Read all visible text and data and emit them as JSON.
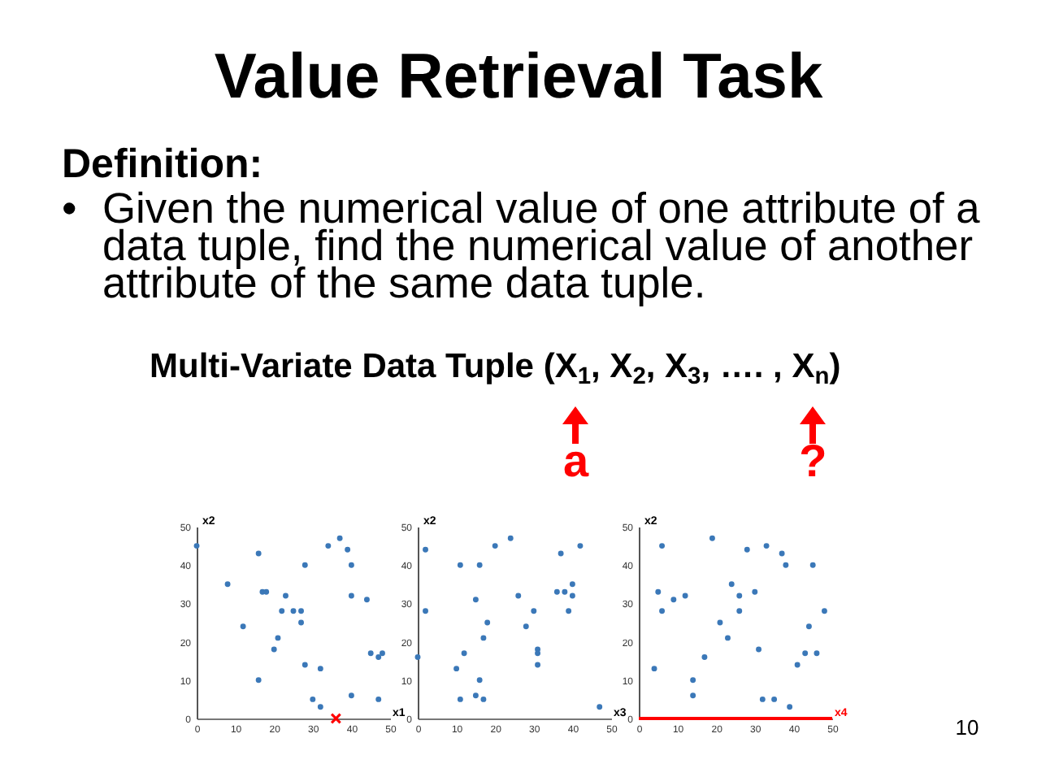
{
  "chart_data": [
    {
      "type": "other",
      "title": "Value Retrieval Task",
      "annotations": [
        "Definition:",
        "• Given the numerical value of one attribute of a data tuple, find the numerical value of another attribute of the same data tuple.",
        "Multi-Variate Data Tuple (X$_{1}$, X$_{2}$, X$_{3}$, …. , X$_{n}$)",
        "a",
        "?",
        "10"
      ]
    },
    {
      "type": "scatter",
      "xlabel": "x1",
      "ylabel": "x2",
      "xlim": [
        0,
        50
      ],
      "ylim": [
        0,
        50
      ],
      "xticks": [
        0,
        10,
        20,
        30,
        40,
        50
      ],
      "yticks": [
        0,
        10,
        20,
        30,
        40,
        50
      ],
      "marker": "circle",
      "series": [
        {
          "color": "#3b78b8",
          "x": [
            0,
            8,
            12,
            16,
            16,
            17,
            18,
            20,
            21,
            22,
            23,
            25,
            27,
            27,
            28,
            28,
            30,
            32,
            32,
            34,
            37,
            39,
            40,
            40,
            40,
            44,
            45,
            47,
            48,
            47
          ],
          "values": [
            45,
            35,
            24,
            43,
            10,
            33,
            33,
            18,
            21,
            28,
            32,
            28,
            28,
            25,
            40,
            14,
            5,
            13,
            3,
            45,
            47,
            44,
            40,
            32,
            6,
            31,
            17,
            16,
            17,
            5
          ]
        },
        {
          "color": "#ff0000",
          "marker": "cross",
          "x": [
            36
          ],
          "values": [
            0
          ]
        }
      ]
    },
    {
      "type": "scatter",
      "xlabel": "x3",
      "ylabel": "x2",
      "xlim": [
        0,
        50
      ],
      "ylim": [
        0,
        50
      ],
      "xticks": [
        0,
        10,
        20,
        30,
        40,
        50
      ],
      "yticks": [
        0,
        10,
        20,
        30,
        40,
        50
      ],
      "marker": "circle",
      "series": [
        {
          "color": "#3b78b8",
          "x": [
            0,
            2,
            2,
            10,
            11,
            11,
            12,
            15,
            15,
            16,
            16,
            17,
            17,
            18,
            20,
            24,
            26,
            28,
            30,
            31,
            31,
            31,
            36,
            37,
            38,
            39,
            40,
            40,
            42,
            47
          ],
          "values": [
            16,
            44,
            28,
            13,
            40,
            5,
            17,
            31,
            6,
            40,
            10,
            21,
            5,
            25,
            45,
            47,
            32,
            24,
            28,
            18,
            17,
            14,
            33,
            43,
            33,
            28,
            35,
            32,
            45,
            3
          ]
        }
      ]
    },
    {
      "type": "scatter",
      "xlabel": "x4",
      "ylabel": "x2",
      "xlim": [
        0,
        50
      ],
      "ylim": [
        0,
        50
      ],
      "xticks": [
        0,
        10,
        20,
        30,
        40,
        50
      ],
      "yticks": [
        0,
        10,
        20,
        30,
        40,
        50
      ],
      "marker": "circle",
      "series": [
        {
          "color": "#3b78b8",
          "x": [
            4,
            5,
            6,
            6,
            9,
            12,
            14,
            14,
            17,
            19,
            21,
            23,
            24,
            26,
            26,
            28,
            30,
            31,
            32,
            33,
            35,
            37,
            38,
            39,
            41,
            43,
            44,
            45,
            46,
            48
          ],
          "values": [
            13,
            33,
            45,
            28,
            31,
            32,
            10,
            6,
            16,
            47,
            25,
            21,
            35,
            32,
            28,
            44,
            33,
            18,
            5,
            45,
            5,
            43,
            40,
            3,
            14,
            17,
            24,
            40,
            17,
            28
          ]
        }
      ],
      "ref_lines": [
        {
          "axis": "y",
          "value": 0,
          "color": "#ff0000"
        }
      ]
    }
  ]
}
